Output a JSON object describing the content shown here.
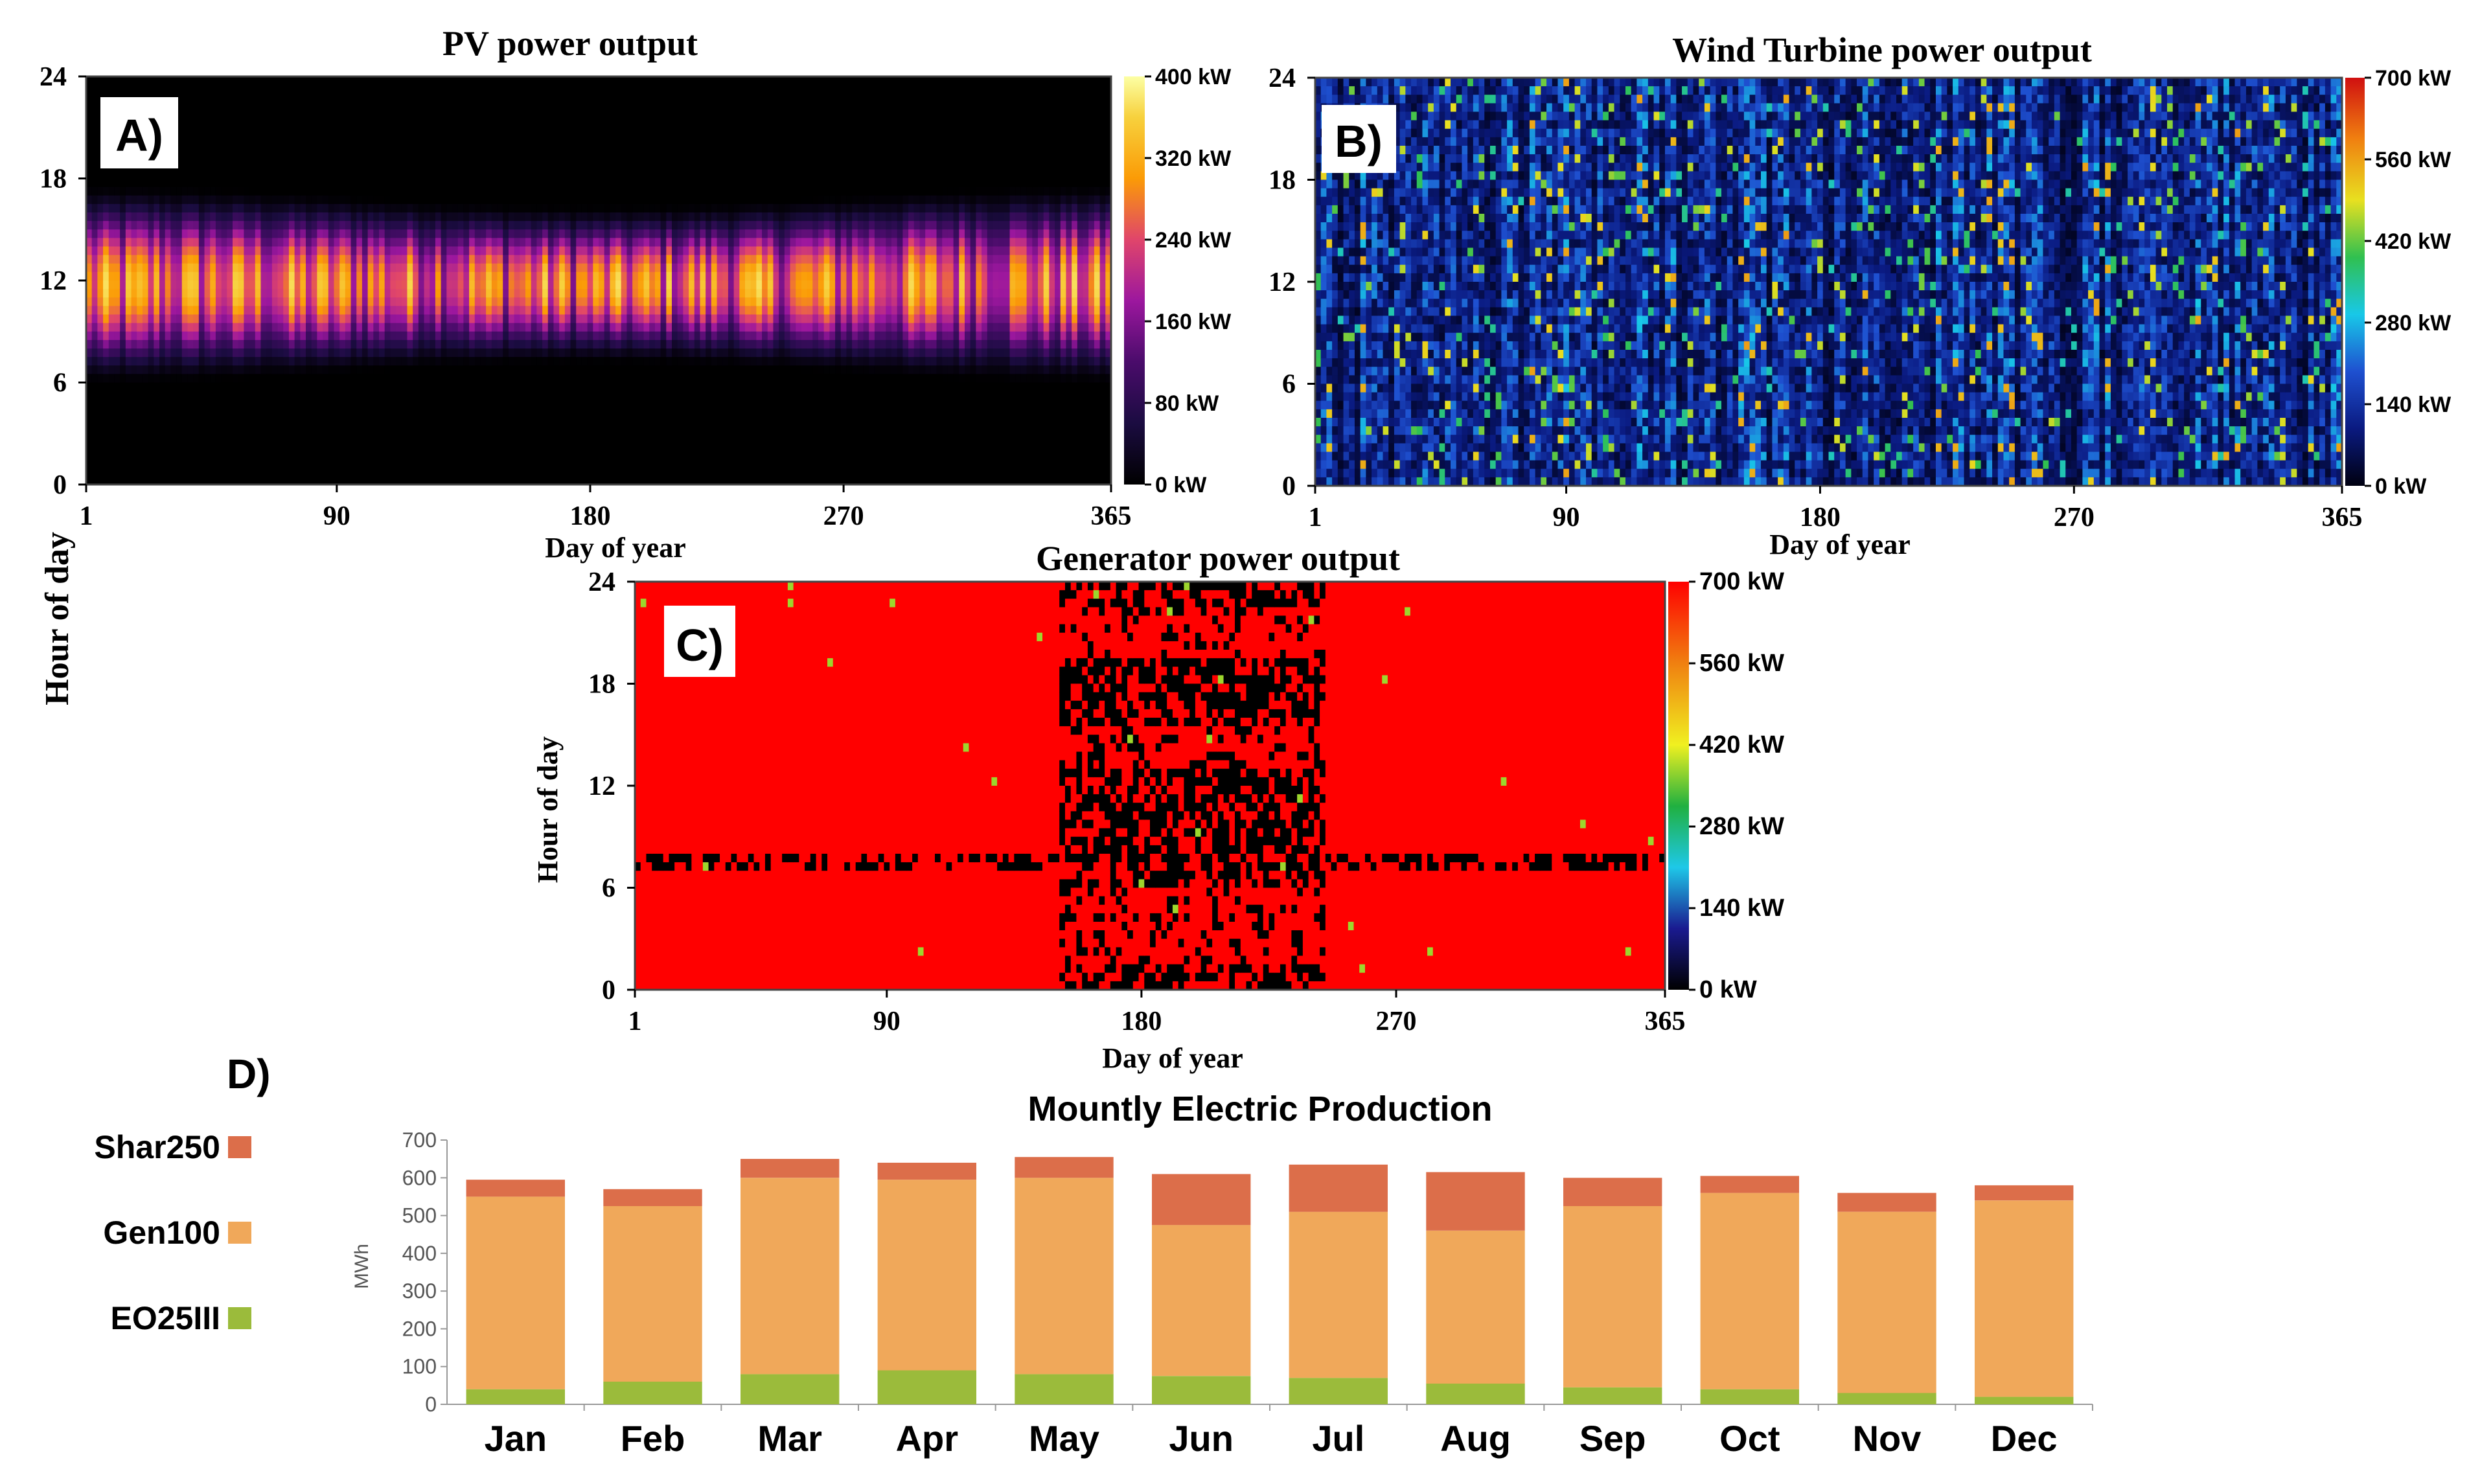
{
  "figure": {
    "shared_ylabel": "Hour of day"
  },
  "chart_data": [
    {
      "id": "A",
      "type": "heatmap",
      "panel_label": "A)",
      "title": "PV power output",
      "xlabel": "Day of year",
      "ylabel": "Hour of day",
      "xticks": [
        1,
        90,
        180,
        270,
        365
      ],
      "yticks": [
        0,
        6,
        12,
        18,
        24
      ],
      "xlim": [
        1,
        365
      ],
      "ylim": [
        0,
        24
      ],
      "colorbar": {
        "min": 0,
        "max": 400,
        "ticks": [
          "0 kW",
          "80 kW",
          "160 kW",
          "240 kW",
          "320 kW",
          "400 kW"
        ]
      },
      "colors": [
        "#000000",
        "#1b0c41",
        "#4a0c6b",
        "#9c179e",
        "#e0456b",
        "#fb9b06",
        "#f7d13d",
        "#fcffa4"
      ],
      "pattern": {
        "sunrise_hour": 6.5,
        "sunset_hour": 17,
        "peak_hour": 12,
        "peak_kw": 330
      }
    },
    {
      "id": "B",
      "type": "heatmap",
      "panel_label": "B)",
      "title": "Wind Turbine power output",
      "xlabel": "Day of year",
      "ylabel": "",
      "xticks": [
        1,
        90,
        180,
        270,
        365
      ],
      "yticks": [
        0,
        6,
        12,
        18,
        24
      ],
      "xlim": [
        1,
        365
      ],
      "ylim": [
        0,
        24
      ],
      "colorbar": {
        "min": 0,
        "max": 700,
        "ticks": [
          "0 kW",
          "140 kW",
          "280 kW",
          "420 kW",
          "560 kW",
          "700 kW"
        ]
      },
      "colors": [
        "#000010",
        "#0a1a80",
        "#1e50d0",
        "#18c8e8",
        "#30c050",
        "#e8e020",
        "#f08010",
        "#d01010"
      ],
      "pattern": {
        "mean_kw": 120,
        "variability": "high"
      }
    },
    {
      "id": "C",
      "type": "heatmap",
      "panel_label": "C)",
      "title": "Generator power output",
      "xlabel": "Day of year",
      "ylabel": "Hour of day",
      "xticks": [
        1,
        90,
        180,
        270,
        365
      ],
      "yticks": [
        0,
        6,
        12,
        18,
        24
      ],
      "xlim": [
        1,
        365
      ],
      "ylim": [
        0,
        24
      ],
      "colorbar": {
        "min": 0,
        "max": 700,
        "ticks": [
          "0 kW",
          "140 kW",
          "280 kW",
          "420 kW",
          "560 kW",
          "700 kW"
        ]
      },
      "colors": [
        "#000000",
        "#1a1a90",
        "#1ec8e8",
        "#20b040",
        "#f0f020",
        "#f08010",
        "#ff0000"
      ],
      "pattern": {
        "base_kw": 700,
        "off_period_days": [
          150,
          245
        ],
        "off_band_hour": 7.5
      }
    },
    {
      "id": "D",
      "type": "bar",
      "stacked": true,
      "panel_label": "D)",
      "title": "Mountly Electric Production",
      "ylabel": "MWh",
      "xlabel": "",
      "ylim": [
        0,
        700
      ],
      "yticks": [
        0,
        100,
        200,
        300,
        400,
        500,
        600,
        700
      ],
      "categories": [
        "Jan",
        "Feb",
        "Mar",
        "Apr",
        "May",
        "Jun",
        "Jul",
        "Aug",
        "Sep",
        "Oct",
        "Nov",
        "Dec"
      ],
      "series": [
        {
          "name": "EO25III",
          "color": "#9bbb3b",
          "values": [
            40,
            60,
            80,
            90,
            80,
            75,
            70,
            55,
            45,
            40,
            30,
            20
          ]
        },
        {
          "name": "Gen100",
          "color": "#f0a85a",
          "values": [
            510,
            465,
            520,
            505,
            520,
            400,
            440,
            405,
            480,
            520,
            480,
            520
          ]
        },
        {
          "name": "Shar250",
          "color": "#dc6e4a",
          "values": [
            45,
            45,
            50,
            45,
            55,
            135,
            125,
            155,
            75,
            45,
            50,
            40
          ]
        }
      ],
      "legend_title": "D)"
    }
  ]
}
